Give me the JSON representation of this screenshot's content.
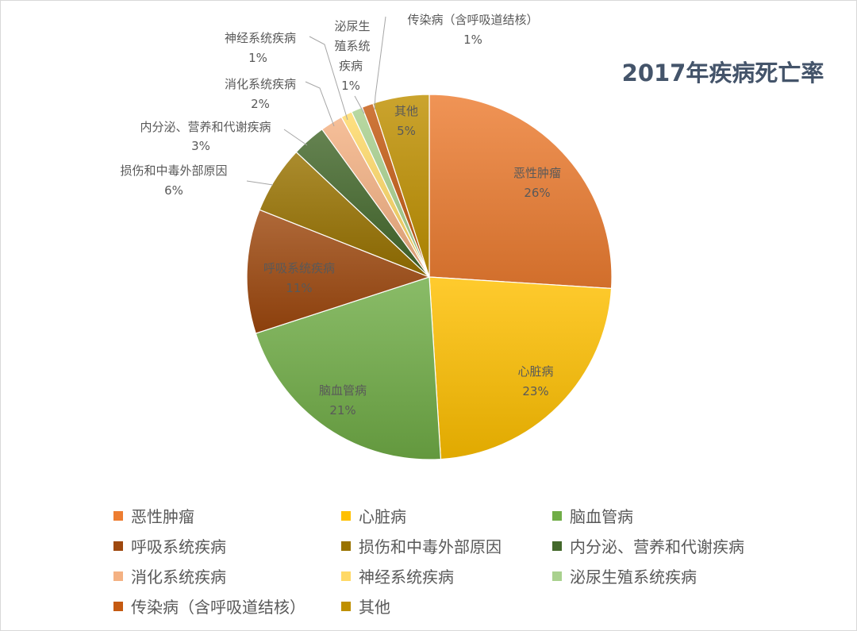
{
  "chart_data": {
    "type": "pie",
    "title": "2017年疾病死亡率",
    "slices": [
      {
        "name": "恶性肿瘤",
        "value": 26,
        "label": "26%",
        "color": "#ed7d31"
      },
      {
        "name": "心脏病",
        "value": 23,
        "label": "23%",
        "color": "#ffc000"
      },
      {
        "name": "脑血管病",
        "value": 21,
        "label": "21%",
        "color": "#70ad47"
      },
      {
        "name": "呼吸系统疾病",
        "value": 11,
        "label": "11%",
        "color": "#9e480e"
      },
      {
        "name": "损伤和中毒外部原因",
        "value": 6,
        "label": "6%",
        "color": "#997300"
      },
      {
        "name": "内分泌、营养和代谢疾病",
        "value": 3,
        "label": "3%",
        "color": "#43682b"
      },
      {
        "name": "消化系统疾病",
        "value": 2,
        "label": "2%",
        "color": "#f4b183"
      },
      {
        "name": "神经系统疾病",
        "value": 1,
        "label": "1%",
        "color": "#ffd966"
      },
      {
        "name": "泌尿生殖系统疾病",
        "value": 1,
        "label": "1%",
        "color": "#a9d18e"
      },
      {
        "name": "传染病（含呼吸道结核）",
        "value": 1,
        "label": "1%",
        "color": "#c55a11"
      },
      {
        "name": "其他",
        "value": 5,
        "label": "5%",
        "color": "#bf9000"
      }
    ]
  }
}
